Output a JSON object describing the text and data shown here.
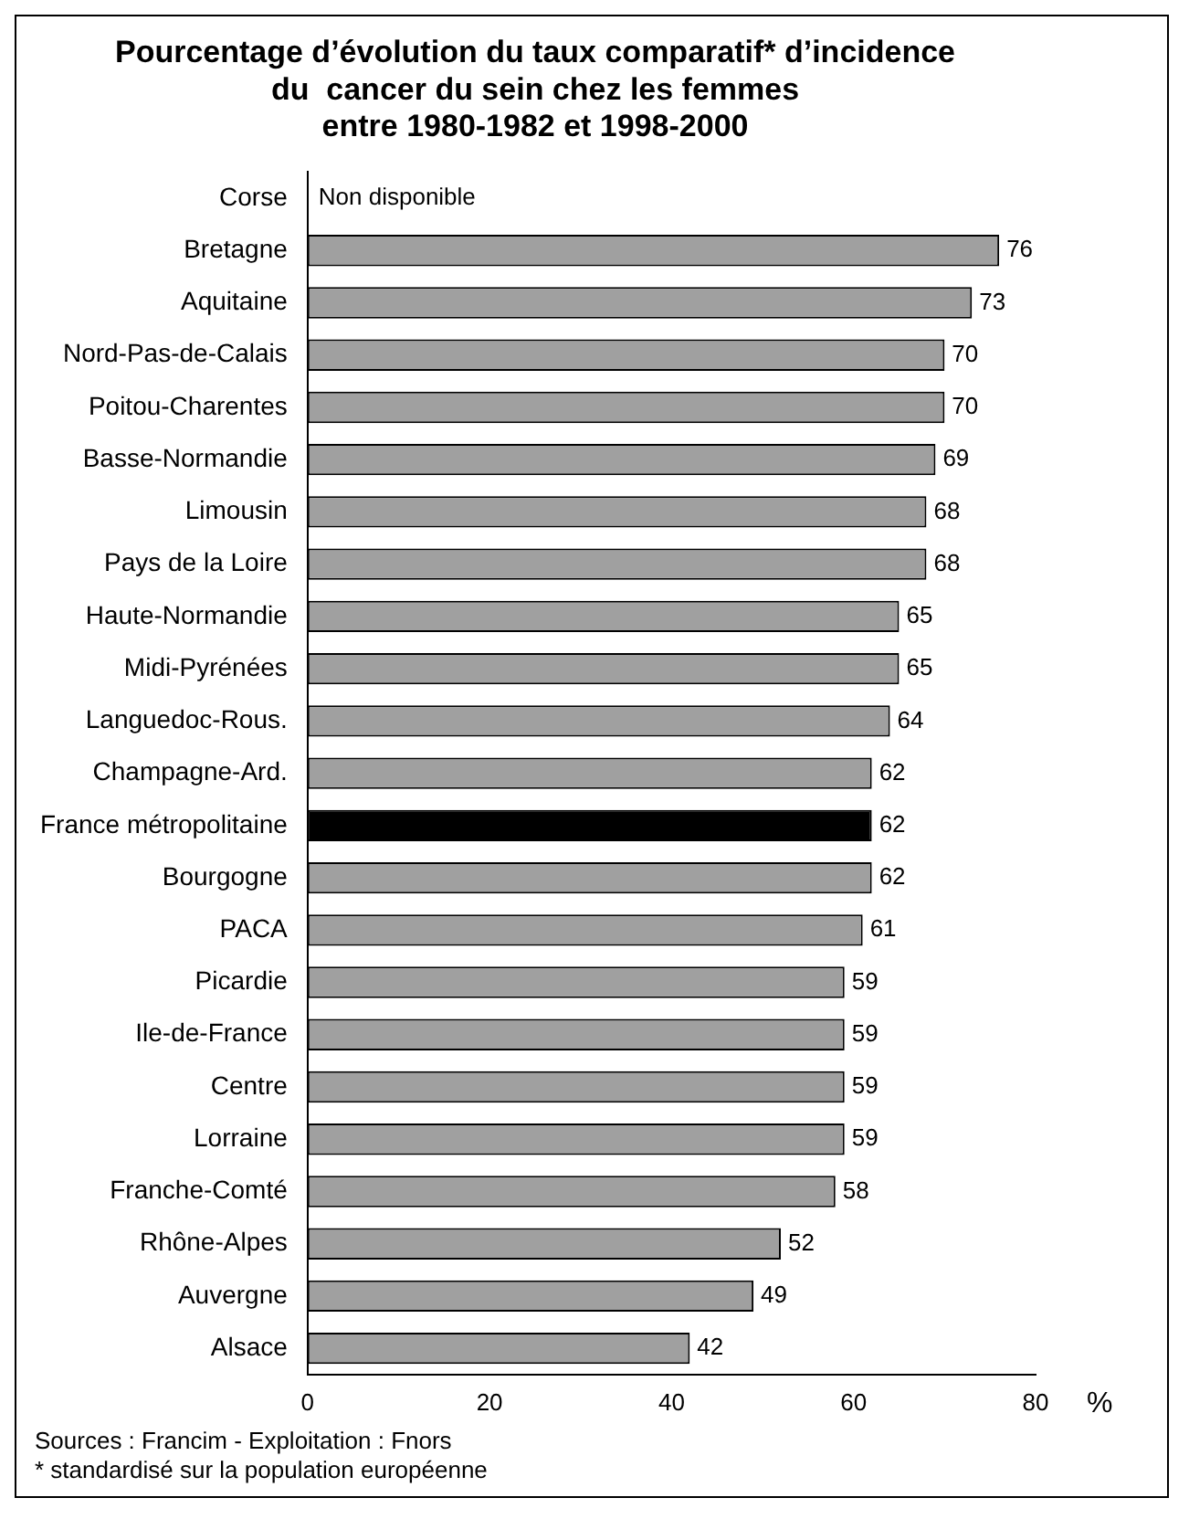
{
  "chart_data": {
    "type": "bar",
    "orientation": "horizontal",
    "title": "Pourcentage d’évolution du taux comparatif* d’incidence\ndu  cancer du sein chez les femmes\nentre 1980-1982 et 1998-2000",
    "xlabel": "%",
    "categories": [
      "Corse",
      "Bretagne",
      "Aquitaine",
      "Nord-Pas-de-Calais",
      "Poitou-Charentes",
      "Basse-Normandie",
      "Limousin",
      "Pays de la Loire",
      "Haute-Normandie",
      "Midi-Pyrénées",
      "Languedoc-Rous.",
      "Champagne-Ard.",
      "France métropolitaine",
      "Bourgogne",
      "PACA",
      "Picardie",
      "Ile-de-France",
      "Centre",
      "Lorraine",
      "Franche-Comté",
      "Rhône-Alpes",
      "Auvergne",
      "Alsace"
    ],
    "values": [
      null,
      76,
      73,
      70,
      70,
      69,
      68,
      68,
      65,
      65,
      64,
      62,
      62,
      62,
      61,
      59,
      59,
      59,
      59,
      58,
      52,
      49,
      42
    ],
    "value_labels": [
      "Non disponible",
      "76",
      "73",
      "70",
      "70",
      "69",
      "68",
      "68",
      "65",
      "65",
      "64",
      "62",
      "62",
      "62",
      "61",
      "59",
      "59",
      "59",
      "59",
      "58",
      "52",
      "49",
      "42"
    ],
    "colors": [
      "#a0a0a0",
      "#a0a0a0",
      "#a0a0a0",
      "#a0a0a0",
      "#a0a0a0",
      "#a0a0a0",
      "#a0a0a0",
      "#a0a0a0",
      "#a0a0a0",
      "#a0a0a0",
      "#a0a0a0",
      "#a0a0a0",
      "#000000",
      "#a0a0a0",
      "#a0a0a0",
      "#a0a0a0",
      "#a0a0a0",
      "#a0a0a0",
      "#a0a0a0",
      "#a0a0a0",
      "#a0a0a0",
      "#a0a0a0",
      "#a0a0a0"
    ],
    "xlim": [
      0,
      80
    ],
    "xticks": [
      0,
      20,
      40,
      60,
      80
    ],
    "grid": false,
    "legend": false,
    "annotations": [
      "Sources : Francim  -  Exploitation : Fnors",
      "* standardisé sur la population européenne"
    ]
  }
}
